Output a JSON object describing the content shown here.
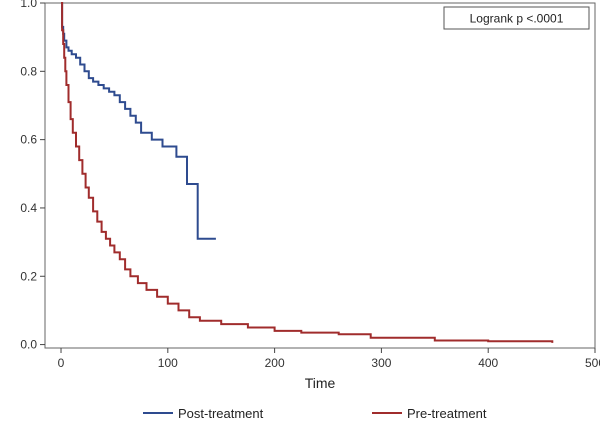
{
  "chart_data": {
    "type": "line",
    "title": "",
    "xlabel": "Time",
    "ylabel": "",
    "xlim": [
      -15,
      500
    ],
    "ylim": [
      -0.01,
      1.0
    ],
    "x_ticks": [
      0,
      100,
      200,
      300,
      400,
      500
    ],
    "y_ticks": [
      0.0,
      0.2,
      0.4,
      0.6,
      0.8,
      1.0
    ],
    "x_tick_labels": [
      "0",
      "100",
      "200",
      "300",
      "400",
      "500"
    ],
    "y_tick_labels": [
      "0.0",
      "0.2",
      "0.4",
      "0.6",
      "0.8",
      "1.0"
    ],
    "grid": false,
    "legend_position": "bottom",
    "annotation": "Logrank p <.0001",
    "series": [
      {
        "name": "Post-treatment",
        "color": "#2e4b8f",
        "step": true,
        "x": [
          0,
          1,
          2,
          3,
          5,
          7,
          10,
          14,
          18,
          22,
          26,
          30,
          35,
          40,
          45,
          50,
          55,
          60,
          65,
          70,
          75,
          85,
          95,
          108,
          118,
          128,
          145
        ],
        "y": [
          1.0,
          0.93,
          0.91,
          0.89,
          0.87,
          0.86,
          0.85,
          0.84,
          0.82,
          0.8,
          0.78,
          0.77,
          0.76,
          0.75,
          0.74,
          0.73,
          0.71,
          0.69,
          0.67,
          0.65,
          0.62,
          0.6,
          0.58,
          0.55,
          0.47,
          0.31,
          0.31
        ]
      },
      {
        "name": "Pre-treatment",
        "color": "#a02c2c",
        "step": true,
        "x": [
          0,
          1,
          2,
          3,
          4,
          5,
          7,
          9,
          11,
          14,
          17,
          20,
          23,
          26,
          30,
          34,
          38,
          42,
          46,
          50,
          55,
          60,
          65,
          72,
          80,
          90,
          100,
          110,
          120,
          130,
          150,
          175,
          200,
          225,
          260,
          290,
          350,
          400,
          450,
          460
        ],
        "y": [
          1.0,
          0.92,
          0.88,
          0.84,
          0.8,
          0.76,
          0.71,
          0.66,
          0.62,
          0.58,
          0.54,
          0.5,
          0.46,
          0.43,
          0.39,
          0.36,
          0.33,
          0.31,
          0.29,
          0.27,
          0.25,
          0.22,
          0.2,
          0.18,
          0.16,
          0.14,
          0.12,
          0.1,
          0.08,
          0.07,
          0.06,
          0.05,
          0.04,
          0.035,
          0.03,
          0.02,
          0.012,
          0.01,
          0.01,
          0.005
        ]
      }
    ]
  }
}
